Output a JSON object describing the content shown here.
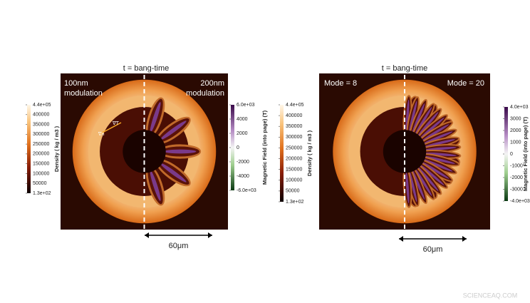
{
  "left": {
    "title": "t = bang-time",
    "label_left": [
      "100nm",
      "modulation"
    ],
    "label_right": [
      "200nm",
      "modulation"
    ],
    "gradient_labels": [
      "∇T",
      "∇n"
    ],
    "scale": "60μm",
    "density_bar": {
      "title": "Density ( kg / m3 )",
      "ticks": [
        "4.4e+05",
        "400000",
        "350000",
        "300000",
        "250000",
        "200000",
        "150000",
        "100000",
        "50000",
        "1.3e+02"
      ]
    },
    "field_bar": {
      "title": "Magnetic Field (into page) (T)",
      "ticks": [
        "6.0e+03",
        "4000",
        "2000",
        "0",
        "-2000",
        "-4000",
        "-6.0e+03"
      ]
    }
  },
  "right": {
    "title": "t = bang-time",
    "label_left": "Mode = 8",
    "label_right": "Mode = 20",
    "scale": "60μm",
    "density_bar": {
      "title": "Density ( kg / m3 )",
      "ticks": [
        "4.4e+05",
        "400000",
        "350000",
        "300000",
        "250000",
        "200000",
        "150000",
        "100000",
        "50000",
        "1.3e+02"
      ]
    },
    "field_bar": {
      "title": "Magnetic Field (into page) (T)",
      "ticks": [
        "4.0e+03",
        "3000",
        "2000",
        "1000",
        "0",
        "-1000",
        "-2000",
        "-3000",
        "-4.0e+03"
      ]
    }
  },
  "watermark": "SCIENCEAQ.COM"
}
